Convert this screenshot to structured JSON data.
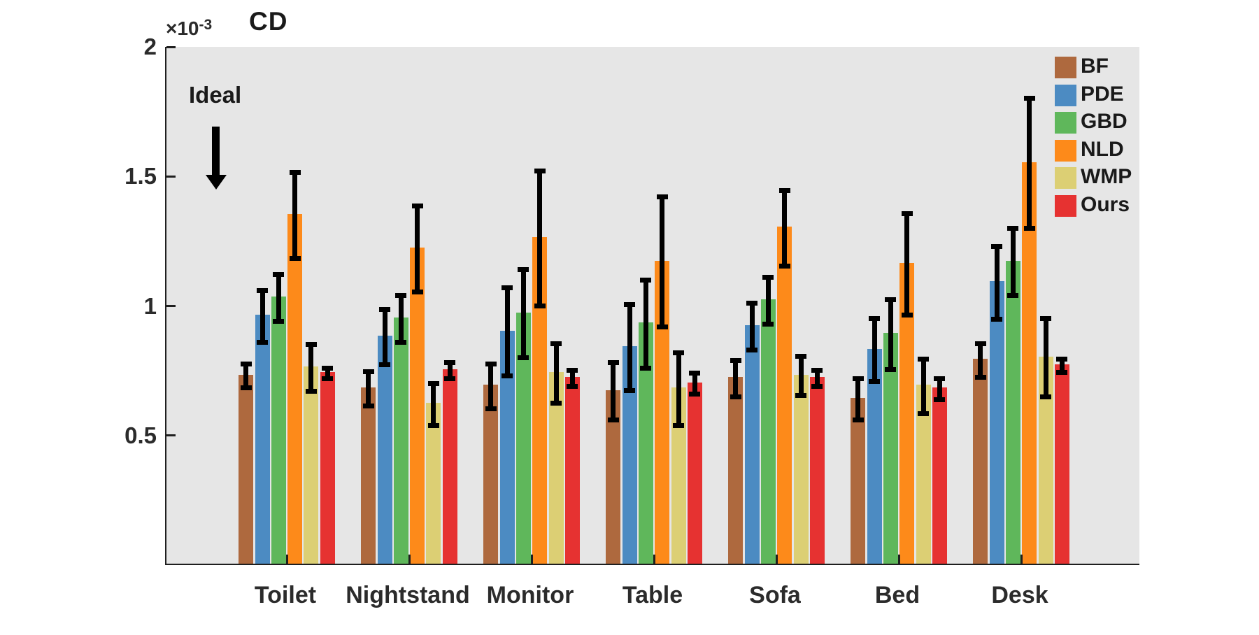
{
  "figure": {
    "title": "CD",
    "y_exponent_base": "×10",
    "y_exponent_power": "-3",
    "annotation_label": "Ideal"
  },
  "chart_data": {
    "type": "bar",
    "title": "CD",
    "y_scale_label": "×10⁻³",
    "xlabel": "",
    "ylabel": "",
    "ylim": [
      0,
      2
    ],
    "grid": false,
    "plot_background": "#e6e6e6",
    "axis_color": "#1f1f1f",
    "error_bar_color": "#000000",
    "legend_position": "top-right-inside",
    "annotation": {
      "text": "Ideal",
      "shape": "down-arrow",
      "location": "upper-left"
    },
    "yticks": [
      {
        "value": 0.5,
        "label": "0.5"
      },
      {
        "value": 1.0,
        "label": "1"
      },
      {
        "value": 1.5,
        "label": "1.5"
      },
      {
        "value": 2.0,
        "label": "2"
      }
    ],
    "categories": [
      "Toilet",
      "Nightstand",
      "Monitor",
      "Table",
      "Sofa",
      "Bed",
      "Desk"
    ],
    "series": [
      {
        "name": "BF",
        "color": "#AE693E",
        "values": [
          0.73,
          0.68,
          0.69,
          0.67,
          0.72,
          0.64,
          0.79
        ],
        "errors": [
          0.055,
          0.075,
          0.095,
          0.12,
          0.08,
          0.09,
          0.075
        ]
      },
      {
        "name": "PDE",
        "color": "#4C8BC2",
        "values": [
          0.96,
          0.88,
          0.9,
          0.84,
          0.92,
          0.83,
          1.09
        ],
        "errors": [
          0.11,
          0.115,
          0.18,
          0.175,
          0.1,
          0.13,
          0.15
        ]
      },
      {
        "name": "GBD",
        "color": "#5FB75B",
        "values": [
          1.03,
          0.95,
          0.97,
          0.93,
          1.02,
          0.89,
          1.17
        ],
        "errors": [
          0.1,
          0.1,
          0.18,
          0.18,
          0.1,
          0.145,
          0.14
        ]
      },
      {
        "name": "NLD",
        "color": "#FD8A1A",
        "values": [
          1.35,
          1.22,
          1.26,
          1.17,
          1.3,
          1.16,
          1.55
        ],
        "errors": [
          0.175,
          0.175,
          0.27,
          0.26,
          0.155,
          0.205,
          0.26
        ]
      },
      {
        "name": "WMP",
        "color": "#DCCF74",
        "values": [
          0.76,
          0.62,
          0.74,
          0.68,
          0.73,
          0.69,
          0.8
        ],
        "errors": [
          0.1,
          0.09,
          0.125,
          0.15,
          0.085,
          0.115,
          0.16
        ]
      },
      {
        "name": "Ours",
        "color": "#E63231",
        "values": [
          0.74,
          0.75,
          0.72,
          0.7,
          0.72,
          0.68,
          0.77
        ],
        "errors": [
          0.03,
          0.04,
          0.04,
          0.05,
          0.04,
          0.05,
          0.035
        ]
      }
    ]
  }
}
